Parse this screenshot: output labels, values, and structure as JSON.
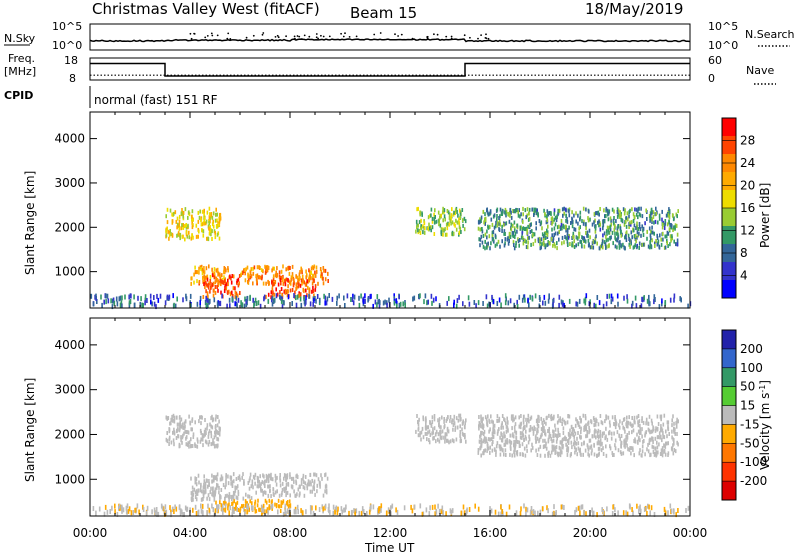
{
  "header": {
    "title": "Christmas Valley West (fitACF)",
    "beam": "Beam 15",
    "date": "18/May/2019"
  },
  "nsky": {
    "label": "N.Sky",
    "ticks": [
      "10^5",
      "10^0"
    ],
    "right_label": "N.Search",
    "right_ticks": [
      "10^5",
      "10^0"
    ]
  },
  "freq": {
    "label_line1": "Freq.",
    "label_line2": "[MHz]",
    "ticks": [
      "18",
      "8"
    ],
    "right_label": "Nave",
    "right_ticks": [
      "60",
      "0"
    ]
  },
  "cpid": {
    "label": "CPID",
    "text": "normal (fast) 151 RF"
  },
  "axes": {
    "ylabel": "Slant Range [km]",
    "yticks": [
      "4000",
      "3000",
      "2000",
      "1000"
    ],
    "xlabel": "Time UT",
    "xticks": [
      "00:00",
      "04:00",
      "08:00",
      "12:00",
      "16:00",
      "20:00",
      "00:00"
    ]
  },
  "power_colorbar": {
    "label": "Power [dB]",
    "ticks": [
      "28",
      "24",
      "20",
      "16",
      "12",
      "8",
      "4"
    ],
    "colors": [
      "#ff0000",
      "#ff4400",
      "#ff8800",
      "#ffaa00",
      "#eedd00",
      "#99cc33",
      "#339966",
      "#336699",
      "#3333cc",
      "#0000ff"
    ]
  },
  "velocity_colorbar": {
    "label": "Velocity [m s",
    "label_sup": "-1",
    "label_end": "]",
    "ticks": [
      "200",
      "100",
      "50",
      "15",
      "-15",
      "-50",
      "-100",
      "-200"
    ],
    "colors": [
      "#2222aa",
      "#3366cc",
      "#339966",
      "#55cc33",
      "#bbbbbb",
      "#ffaa00",
      "#ff7700",
      "#ff3300",
      "#dd0000"
    ]
  },
  "chart_data": [
    {
      "type": "heatmap",
      "panel": "power",
      "x_range_hours": [
        0,
        24
      ],
      "y_range_km": [
        180,
        4600
      ],
      "colorbar_range_db": [
        0,
        32
      ],
      "regions": [
        {
          "t0": 3.0,
          "t1": 5.2,
          "r0": 1700,
          "r1": 2400,
          "value": 18
        },
        {
          "t0": 4.0,
          "t1": 5.5,
          "r0": 700,
          "r1": 1100,
          "value": 22
        },
        {
          "t0": 4.5,
          "t1": 6.0,
          "r0": 400,
          "r1": 900,
          "value": 28
        },
        {
          "t0": 6.0,
          "t1": 9.5,
          "r0": 700,
          "r1": 1100,
          "value": 24
        },
        {
          "t0": 7.0,
          "t1": 9.0,
          "r0": 400,
          "r1": 800,
          "value": 28
        },
        {
          "t0": 13.0,
          "t1": 15.0,
          "r0": 1800,
          "r1": 2400,
          "value": 14
        },
        {
          "t0": 15.5,
          "t1": 23.5,
          "r0": 1500,
          "r1": 2400,
          "value": 10
        },
        {
          "t0": 0.0,
          "t1": 24.0,
          "r0": 200,
          "r1": 450,
          "value": 6
        }
      ]
    },
    {
      "type": "heatmap",
      "panel": "velocity",
      "x_range_hours": [
        0,
        24
      ],
      "y_range_km": [
        180,
        4600
      ],
      "colorbar_range_ms": [
        -250,
        250
      ],
      "regions": [
        {
          "t0": 3.0,
          "t1": 5.2,
          "r0": 1700,
          "r1": 2400,
          "value": 0
        },
        {
          "t0": 4.0,
          "t1": 6.5,
          "r0": 500,
          "r1": 1100,
          "value": 20
        },
        {
          "t0": 6.5,
          "t1": 9.5,
          "r0": 600,
          "r1": 1100,
          "value": 0
        },
        {
          "t0": 5.0,
          "t1": 8.0,
          "r0": 250,
          "r1": 500,
          "value": -60
        },
        {
          "t0": 13.0,
          "t1": 15.0,
          "r0": 1800,
          "r1": 2400,
          "value": 0
        },
        {
          "t0": 15.5,
          "t1": 23.5,
          "r0": 1500,
          "r1": 2400,
          "value": 0
        },
        {
          "t0": 0.0,
          "t1": 24.0,
          "r0": 200,
          "r1": 400,
          "value": -30
        }
      ]
    }
  ],
  "freq_series": {
    "hours": [
      0,
      3.0,
      3.0,
      15.0,
      15.0,
      24
    ],
    "mhz": [
      15.5,
      15.5,
      9.8,
      9.8,
      15.5,
      15.5
    ],
    "nave_dotted": 13
  }
}
